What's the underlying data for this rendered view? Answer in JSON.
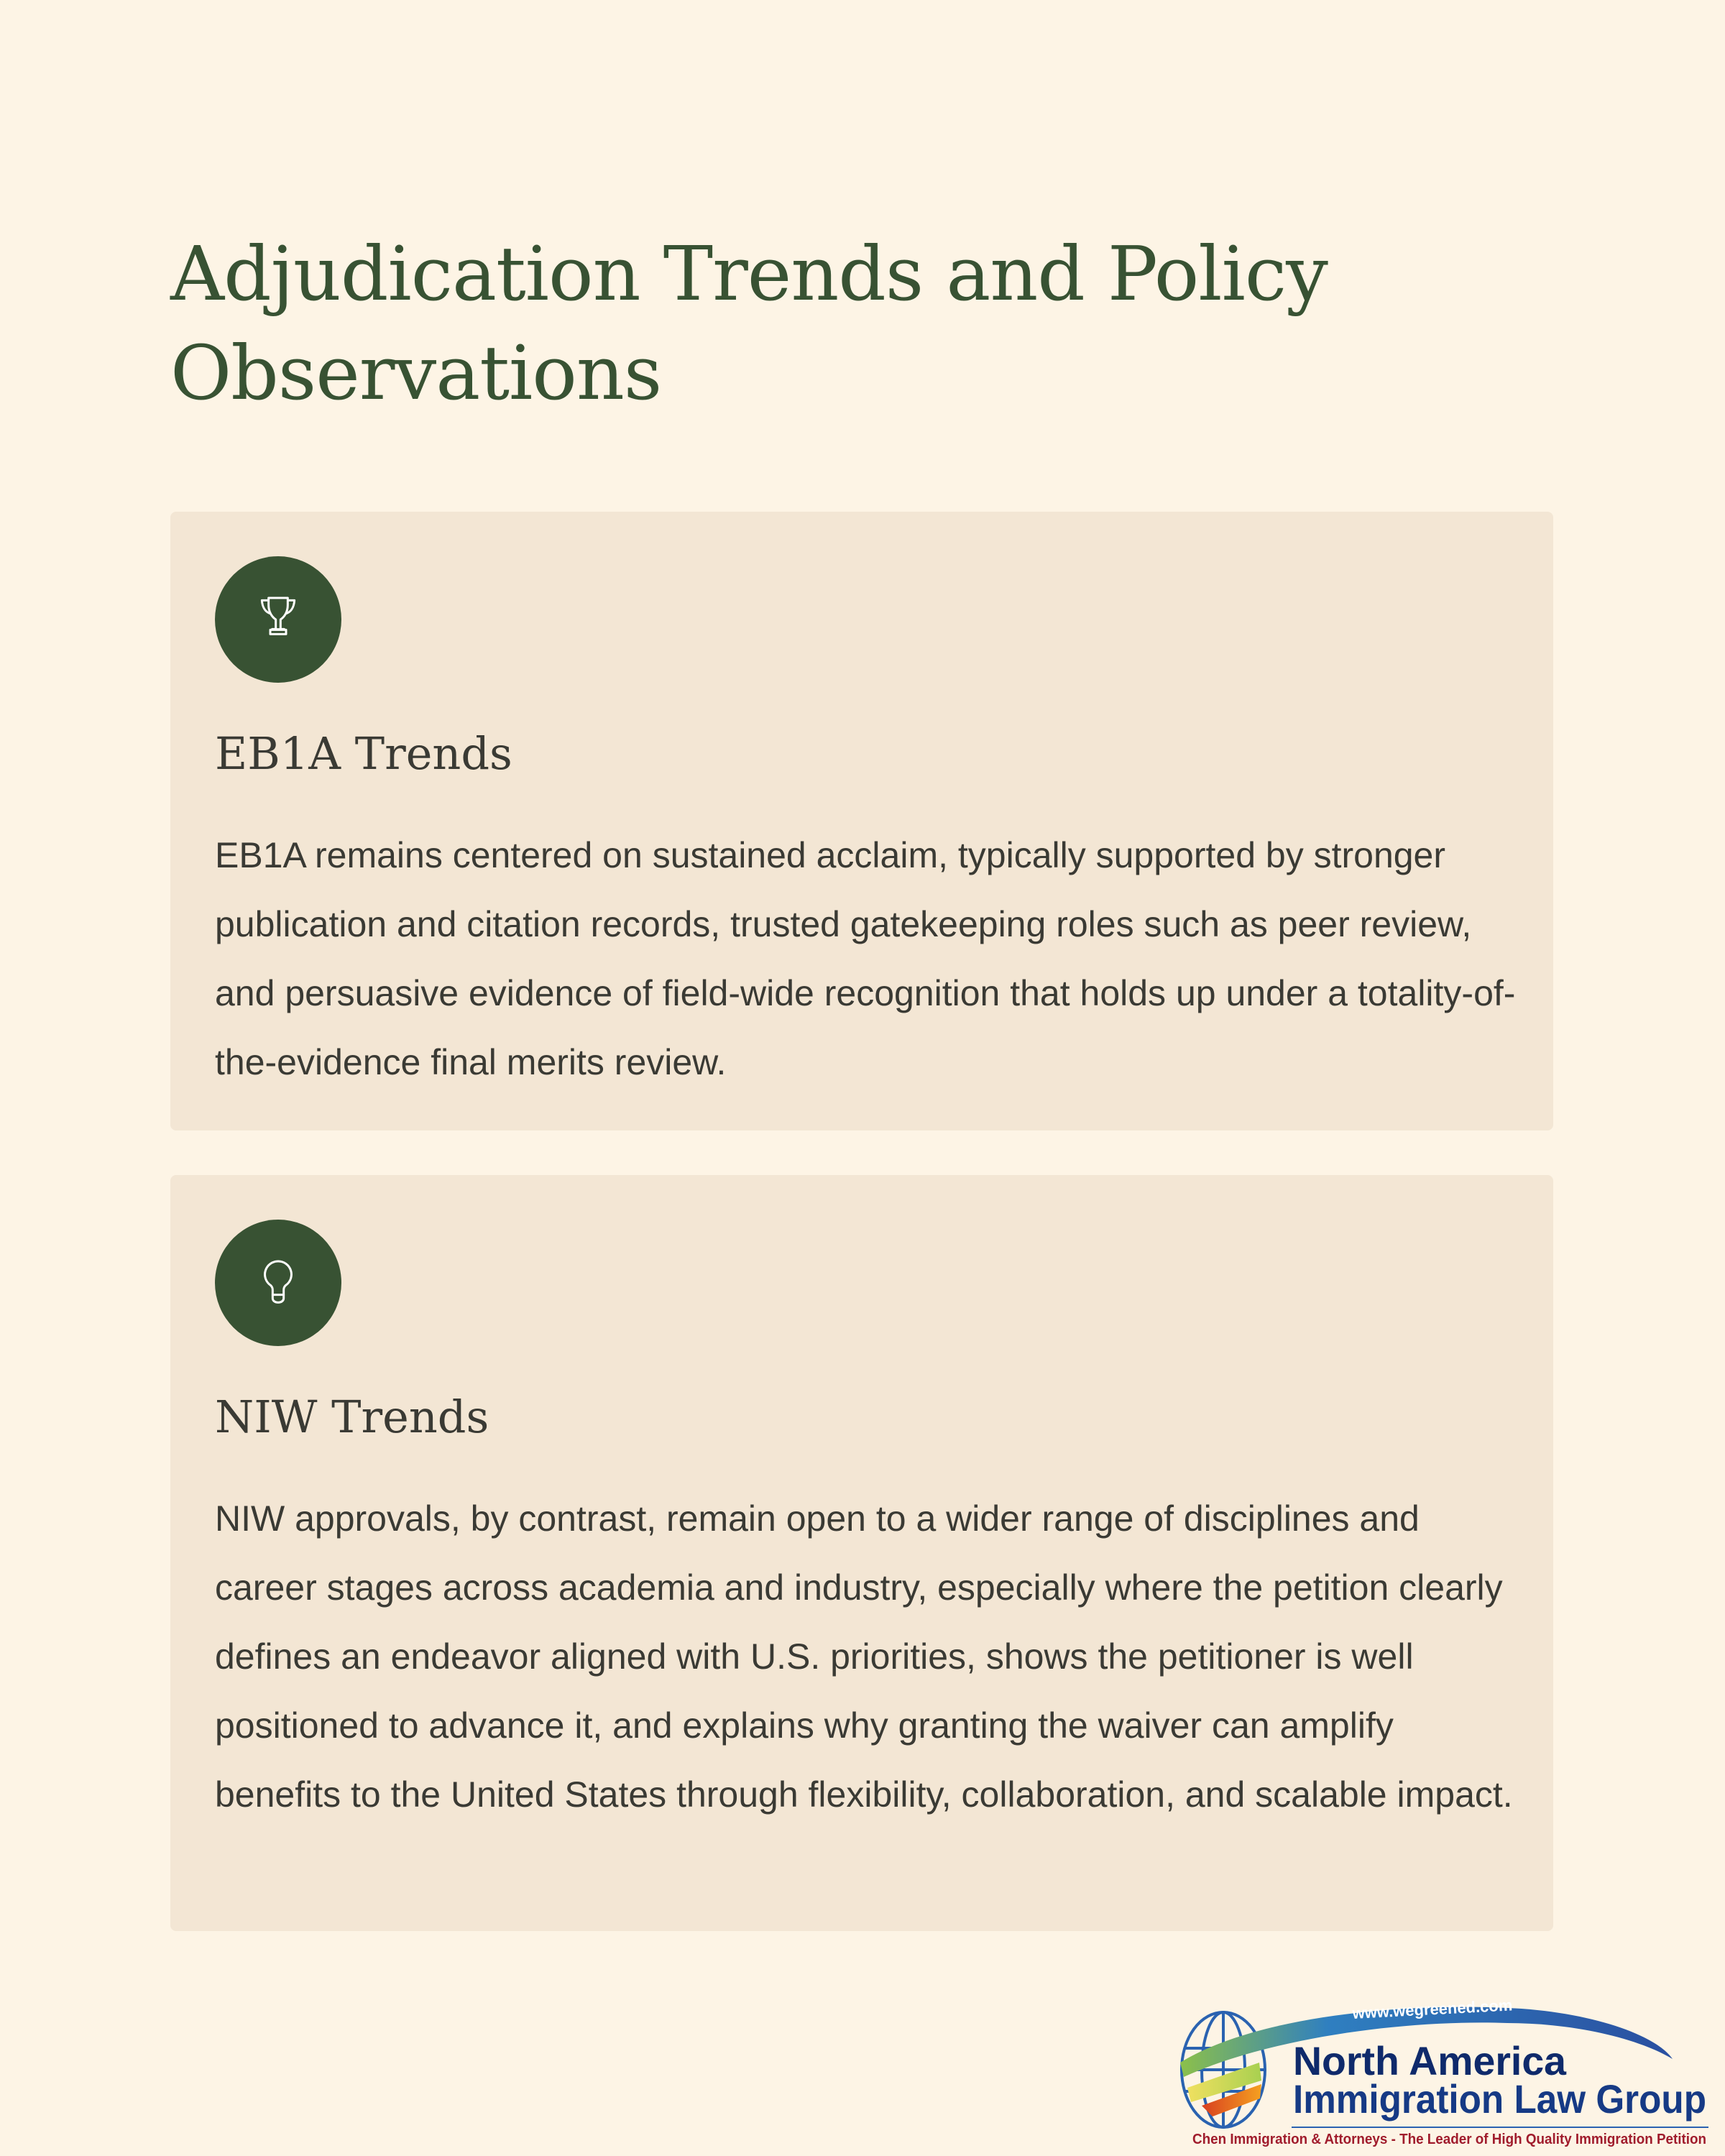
{
  "page": {
    "title": "Adjudication Trends and Policy Observations"
  },
  "cards": [
    {
      "icon": "trophy-icon",
      "heading": "EB1A Trends",
      "body": "EB1A remains centered on sustained acclaim, typically supported by stronger publication and citation records, trusted gatekeeping roles such as peer review, and persuasive evidence of field-wide recognition that holds up under a totality-of-the-evidence final merits review."
    },
    {
      "icon": "lightbulb-icon",
      "heading": "NIW Trends",
      "body": "NIW approvals, by contrast, remain open to a wider range of disciplines and career stages across academia and industry, especially where the petition clearly defines an endeavor aligned with U.S. priorities, shows the petitioner is well positioned to advance it, and explains why granting the waiver can amplify benefits to the United States through flexibility, collaboration, and scalable impact."
    }
  ],
  "logo": {
    "url": "www.wegreened.com",
    "line1": "North America",
    "line2": "Immigration Law Group",
    "tagline": "Chen Immigration & Attorneys - The Leader of High Quality Immigration Petition"
  },
  "colors": {
    "accent": "#385233",
    "background": "#fdf4e5",
    "card": "#f3e6d4"
  }
}
